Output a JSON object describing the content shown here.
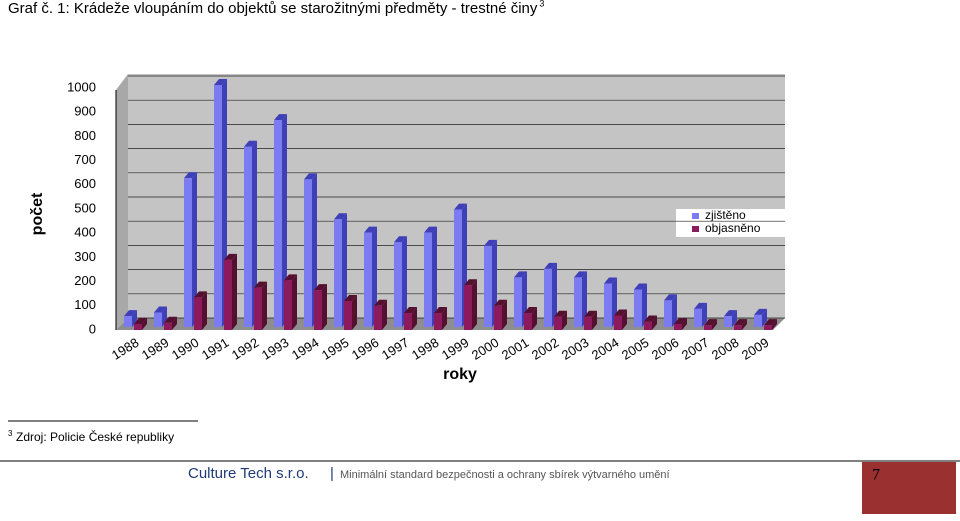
{
  "header": {
    "title": "Graf č. 1: Krádeže vloupáním do objektů se starožitnými předměty - trestné činy",
    "footnote_ref": "3"
  },
  "chart_data": {
    "type": "bar",
    "y_label": "počet",
    "x_label": "roky",
    "categories": [
      "1988",
      "1989",
      "1990",
      "1991",
      "1992",
      "1993",
      "1994",
      "1995",
      "1996",
      "1997",
      "1998",
      "1999",
      "2000",
      "2001",
      "2002",
      "2003",
      "2004",
      "2005",
      "2006",
      "2007",
      "2008",
      "2009"
    ],
    "series": [
      {
        "name": "zjištěno",
        "color": "#7b7cf2",
        "values": [
          45,
          60,
          615,
          1000,
          745,
          855,
          610,
          445,
          390,
          350,
          390,
          485,
          335,
          205,
          240,
          205,
          180,
          155,
          110,
          75,
          45,
          50
        ]
      },
      {
        "name": "objasněno",
        "color": "#8c1a5c",
        "values": [
          25,
          30,
          135,
          290,
          175,
          205,
          165,
          120,
          100,
          70,
          70,
          185,
          100,
          70,
          55,
          55,
          60,
          35,
          25,
          20,
          20,
          20
        ]
      }
    ],
    "ylim": [
      0,
      1000
    ],
    "yticks": [
      0,
      100,
      200,
      300,
      400,
      500,
      600,
      700,
      800,
      900,
      1000
    ],
    "grid": true,
    "legend": "right"
  },
  "footnote": {
    "marker": "3",
    "text": "Zdroj: Policie České republiky"
  },
  "footer": {
    "company": "Culture Tech s.r.o.",
    "separator": "|",
    "text": "Minimální standard bezpečnosti a ochrany sbírek výtvarného umění",
    "page": "7"
  }
}
